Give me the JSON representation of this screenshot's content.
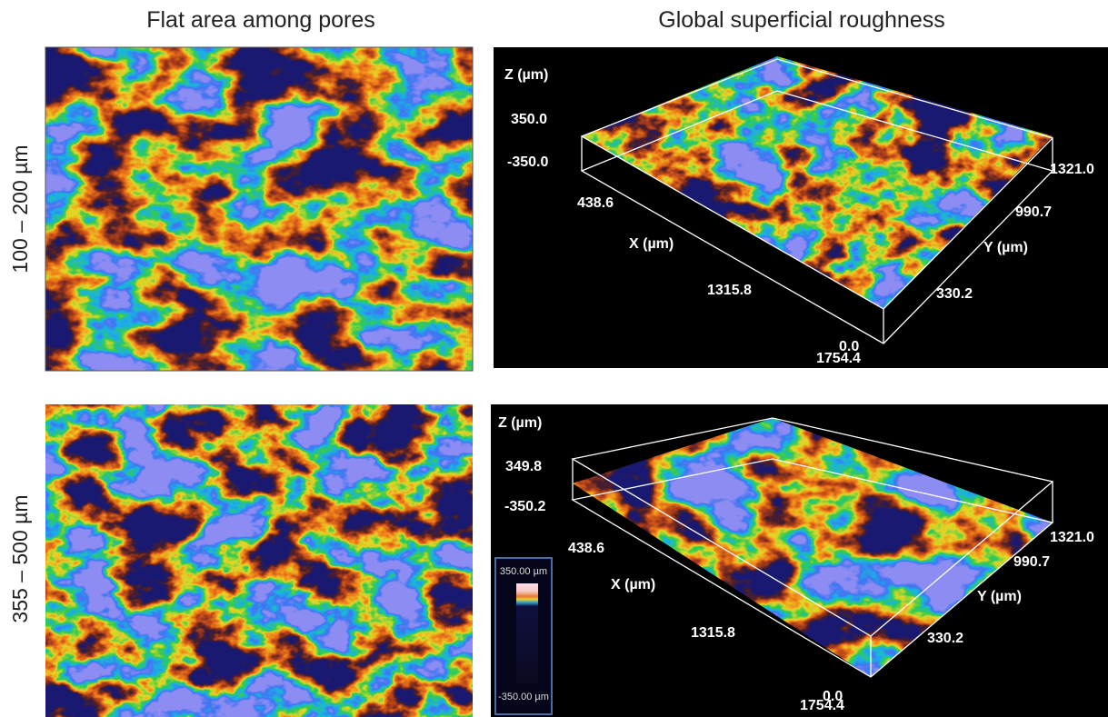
{
  "columns": [
    "Flat area among pores",
    "Global superficial roughness"
  ],
  "rows": [
    {
      "label": "100 – 200 µm",
      "surface_plot": {
        "z_label": "Z (µm)",
        "z_max": "350.0",
        "z_min": "-350.0",
        "x_label": "X (µm)",
        "x_ticks": [
          "438.6",
          "1315.8",
          "1754.4"
        ],
        "y_label": "Y (µm)",
        "y_ticks": [
          "0.0",
          "330.2",
          "990.7",
          "1321.0"
        ]
      }
    },
    {
      "label": "355 – 500 µm",
      "surface_plot": {
        "z_label": "Z (µm)",
        "z_max": "349.8",
        "z_min": "-350.2",
        "x_label": "X (µm)",
        "x_ticks": [
          "438.6",
          "1315.8",
          "1754.4"
        ],
        "y_label": "Y (µm)",
        "y_ticks": [
          "0.0",
          "330.2",
          "990.7",
          "1321.0"
        ]
      }
    }
  ],
  "colorbar": {
    "max": "350.00 µm",
    "min": "-350.00 µm"
  }
}
